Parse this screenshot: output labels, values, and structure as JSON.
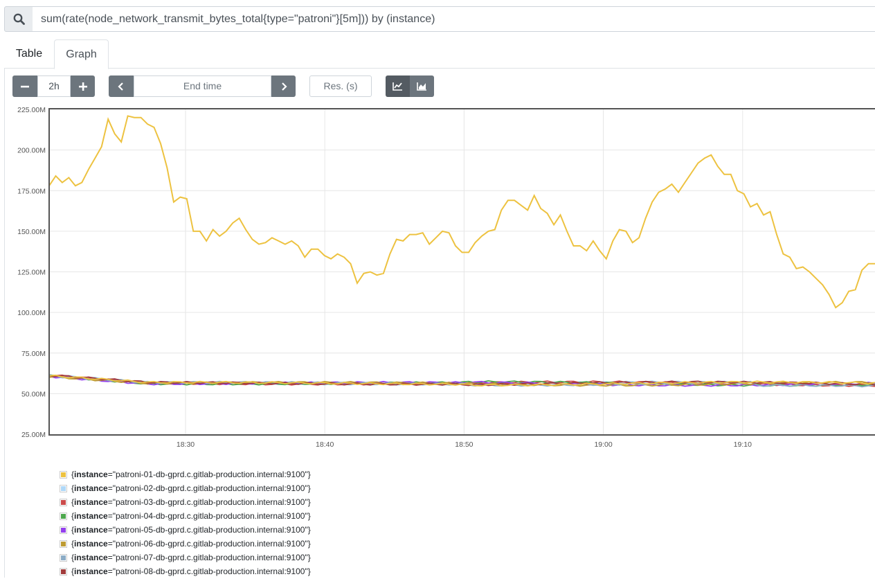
{
  "query": {
    "expression": "sum(rate(node_network_transmit_bytes_total{type=\"patroni\"}[5m])) by (instance)"
  },
  "tabs": [
    {
      "label": "Table",
      "active": false
    },
    {
      "label": "Graph",
      "active": true
    }
  ],
  "controls": {
    "range_value": "2h",
    "end_time_placeholder": "End time",
    "resolution_placeholder": "Res. (s)"
  },
  "chart_data": {
    "type": "line",
    "y_tick_labels": [
      "225.00M",
      "200.00M",
      "175.00M",
      "150.00M",
      "125.00M",
      "100.00M",
      "75.00M",
      "50.00M",
      "25.00M"
    ],
    "ylim": [
      25,
      225
    ],
    "x_tick_labels": [
      "18:30",
      "18:40",
      "18:50",
      "19:00",
      "19:10"
    ],
    "grid": true,
    "legend_position": "bottom",
    "series": [
      {
        "name": "{instance=\"patroni-01-db-gprd.c.gitlab-production.internal:9100\"}",
        "label_key": "instance",
        "label_value": "\"patroni-01-db-gprd.c.gitlab-production.internal:9100\"",
        "color": "#edc240",
        "values": [
          178,
          184,
          180,
          183,
          178,
          180,
          188,
          195,
          202,
          219,
          210,
          205,
          221,
          220,
          220,
          216,
          214,
          204,
          189,
          168,
          171,
          170,
          150,
          150,
          144,
          151,
          147,
          150,
          155,
          158,
          151,
          145,
          142,
          143,
          146,
          144,
          142,
          144,
          141,
          134,
          139,
          139,
          135,
          133,
          136,
          134,
          130,
          118,
          124,
          125,
          123,
          124,
          136,
          145,
          144,
          148,
          148,
          149,
          142,
          146,
          150,
          149,
          141,
          137,
          137,
          143,
          147,
          150,
          151,
          163,
          169,
          169,
          166,
          163,
          172,
          164,
          161,
          154,
          160,
          150,
          141,
          141,
          138,
          144,
          138,
          133,
          144,
          151,
          150,
          143,
          146,
          158,
          168,
          174,
          176,
          179,
          174,
          180,
          186,
          192,
          195,
          197,
          190,
          185,
          185,
          175,
          173,
          165,
          167,
          160,
          162,
          148,
          136,
          134,
          127,
          128,
          125,
          121,
          117,
          111,
          103,
          106,
          113,
          114,
          126,
          130,
          130
        ]
      },
      {
        "name": "{instance=\"patroni-02-db-gprd.c.gitlab-production.internal:9100\"}",
        "label_key": "instance",
        "label_value": "\"patroni-02-db-gprd.c.gitlab-production.internal:9100\"",
        "color": "#afd8f8",
        "values": []
      },
      {
        "name": "{instance=\"patroni-03-db-gprd.c.gitlab-production.internal:9100\"}",
        "label_key": "instance",
        "label_value": "\"patroni-03-db-gprd.c.gitlab-production.internal:9100\"",
        "color": "#cb4b4b",
        "values": []
      },
      {
        "name": "{instance=\"patroni-04-db-gprd.c.gitlab-production.internal:9100\"}",
        "label_key": "instance",
        "label_value": "\"patroni-04-db-gprd.c.gitlab-production.internal:9100\"",
        "color": "#4da74d",
        "values": []
      },
      {
        "name": "{instance=\"patroni-05-db-gprd.c.gitlab-production.internal:9100\"}",
        "label_key": "instance",
        "label_value": "\"patroni-05-db-gprd.c.gitlab-production.internal:9100\"",
        "color": "#9440ed",
        "values": []
      },
      {
        "name": "{instance=\"patroni-06-db-gprd.c.gitlab-production.internal:9100\"}",
        "label_key": "instance",
        "label_value": "\"patroni-06-db-gprd.c.gitlab-production.internal:9100\"",
        "color": "#bd9b33",
        "values": []
      },
      {
        "name": "{instance=\"patroni-07-db-gprd.c.gitlab-production.internal:9100\"}",
        "label_key": "instance",
        "label_value": "\"patroni-07-db-gprd.c.gitlab-production.internal:9100\"",
        "color": "#8cacc6",
        "values": []
      },
      {
        "name": "{instance=\"patroni-08-db-gprd.c.gitlab-production.internal:9100\"}",
        "label_key": "instance",
        "label_value": "\"patroni-08-db-gprd.c.gitlab-production.internal:9100\"",
        "color": "#a23c3c",
        "values": []
      }
    ]
  }
}
